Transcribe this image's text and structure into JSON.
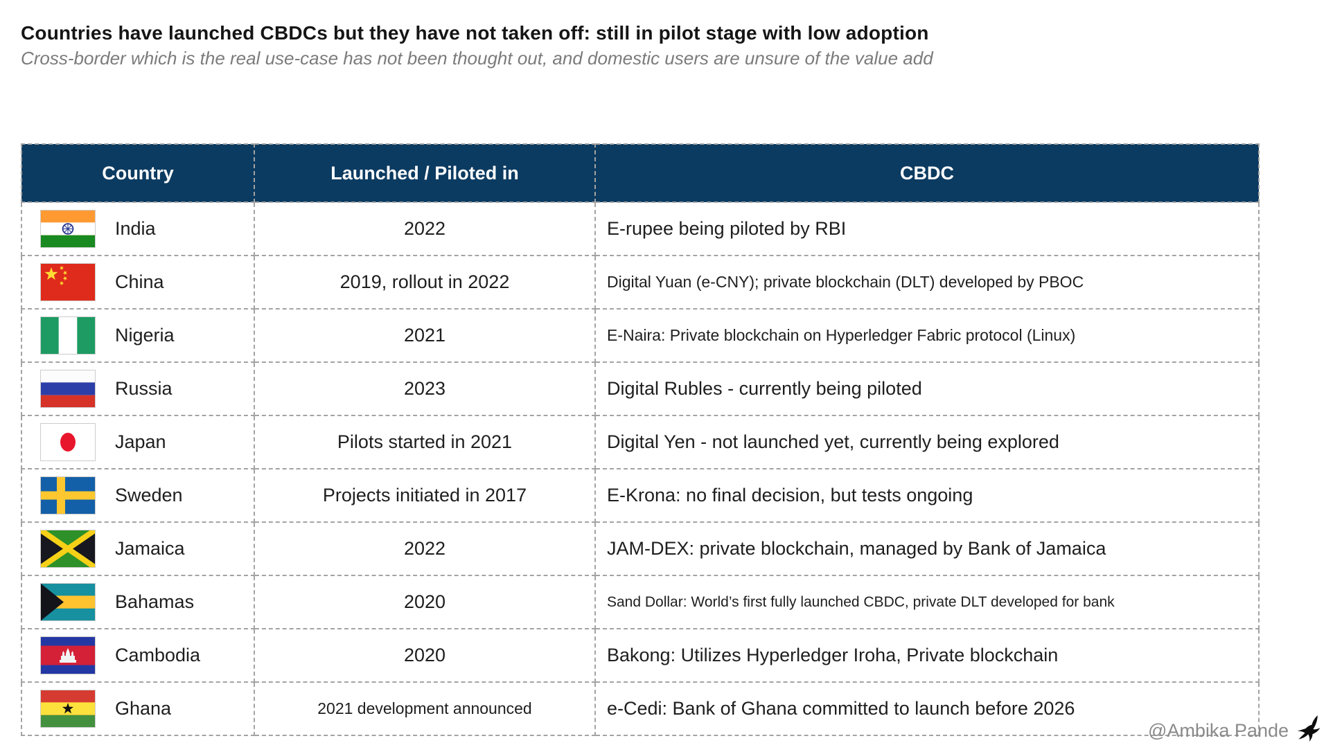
{
  "header": {
    "title": "Countries have launched CBDCs but they have not taken off: still in pilot stage with low adoption",
    "subtitle": "Cross-border which is the real use-case has not been thought out, and domestic users are unsure of the value add"
  },
  "table": {
    "columns": [
      "Country",
      "Launched / Piloted in",
      "CBDC"
    ],
    "rows": [
      {
        "flag": "india",
        "country": "India",
        "launched": "2022",
        "cbdc": "E-rupee being piloted by RBI"
      },
      {
        "flag": "china",
        "country": "China",
        "launched": "2019, rollout in 2022",
        "cbdc": "Digital Yuan (e-CNY); private blockchain (DLT) developed by PBOC",
        "cbdc_size": "sm"
      },
      {
        "flag": "nigeria",
        "country": "Nigeria",
        "launched": "2021",
        "cbdc": "E-Naira: Private blockchain on Hyperledger Fabric protocol (Linux)",
        "cbdc_size": "sm"
      },
      {
        "flag": "russia",
        "country": "Russia",
        "launched": "2023",
        "cbdc": "Digital Rubles - currently being piloted"
      },
      {
        "flag": "japan",
        "country": "Japan",
        "launched": "Pilots started in 2021",
        "cbdc": "Digital Yen - not launched yet, currently being explored"
      },
      {
        "flag": "sweden",
        "country": "Sweden",
        "launched": "Projects initiated in 2017",
        "cbdc": "E-Krona: no final decision, but tests ongoing"
      },
      {
        "flag": "jamaica",
        "country": "Jamaica",
        "launched": "2022",
        "cbdc": "JAM-DEX: private blockchain, managed by Bank of Jamaica"
      },
      {
        "flag": "bahamas",
        "country": "Bahamas",
        "launched": "2020",
        "cbdc": "Sand Dollar: World’s first fully launched CBDC, private DLT developed for bank",
        "cbdc_size": "xs"
      },
      {
        "flag": "cambodia",
        "country": "Cambodia",
        "launched": "2020",
        "cbdc": "Bakong: Utilizes Hyperledger Iroha, Private blockchain"
      },
      {
        "flag": "ghana",
        "country": "Ghana",
        "launched": "2021 development announced",
        "cbdc": "e-Cedi: Bank of Ghana committed to launch before 2026",
        "launched_size": "sm"
      }
    ]
  },
  "footer": {
    "attribution": "@Ambika Pande",
    "icon": "flying-bird-icon"
  },
  "colors": {
    "header_bg": "#0C3B61",
    "header_text": "#FFFFFF",
    "border_dashed": "#A3A3A3",
    "title_text": "#151515",
    "subtitle_text": "#7B7B7B",
    "body_text": "#1E1E1E",
    "attribution_text": "#8A8A8A"
  }
}
